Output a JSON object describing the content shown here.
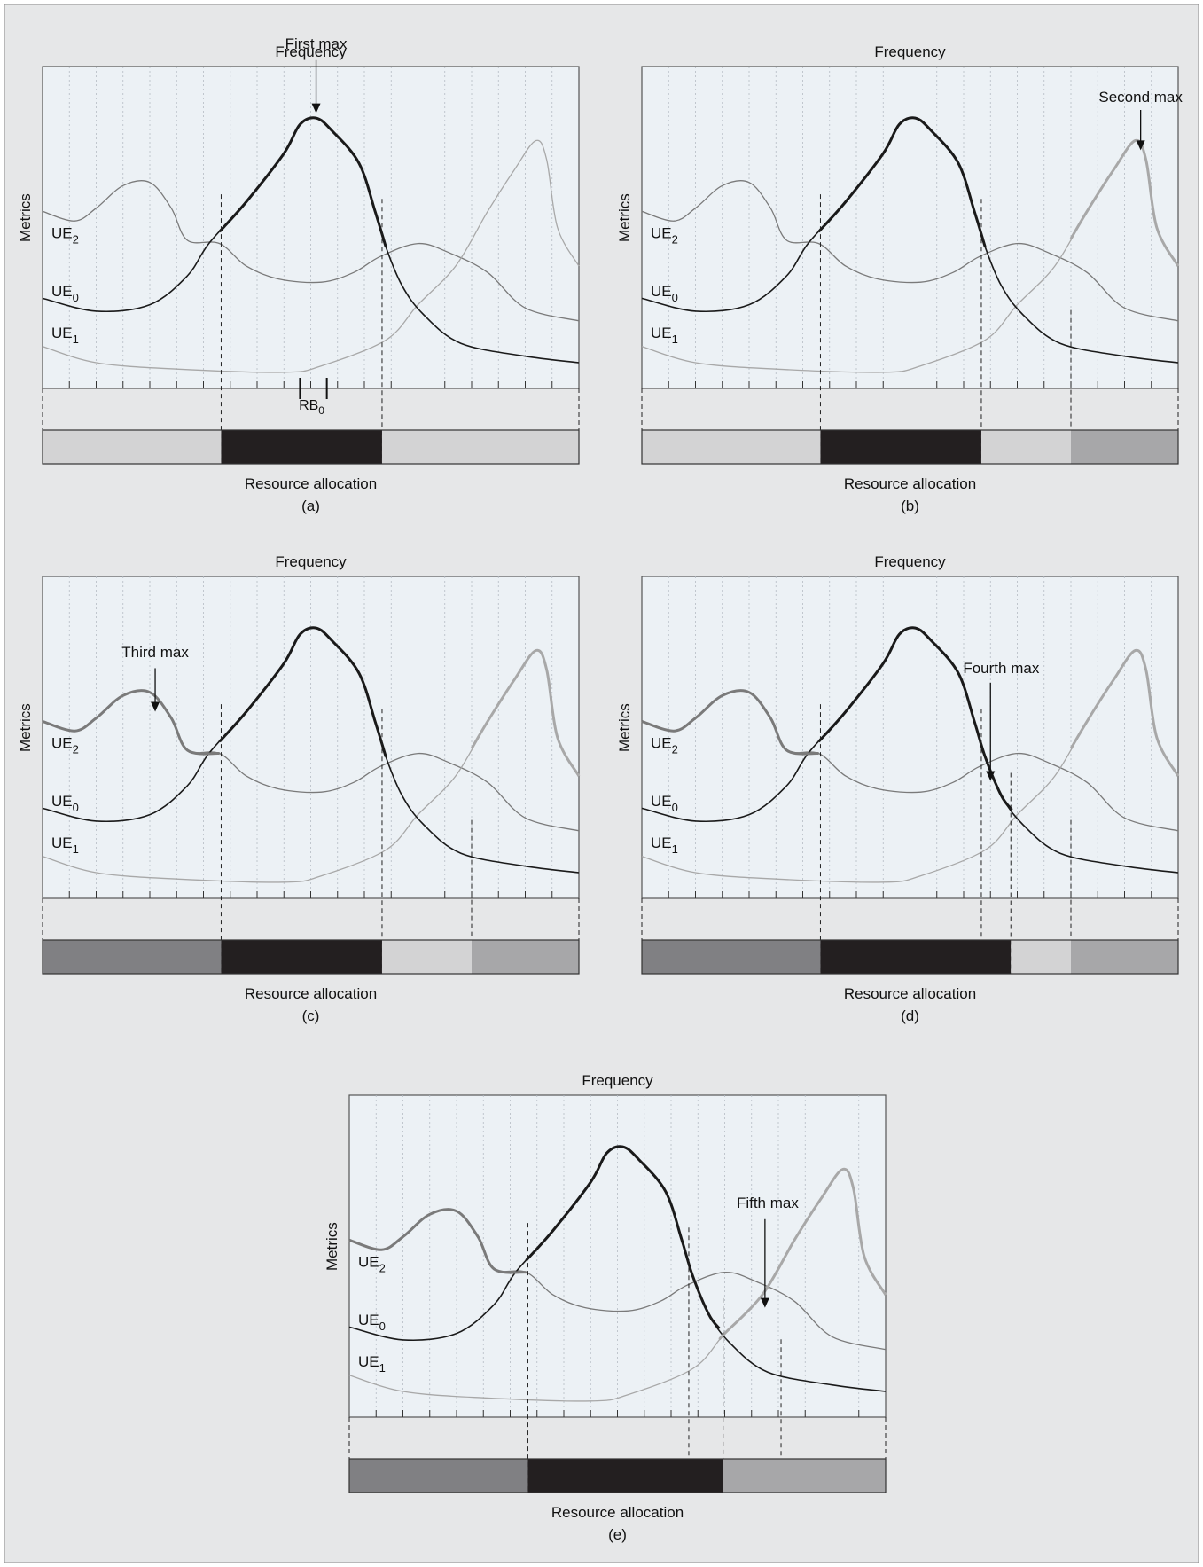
{
  "figure": {
    "colors": {
      "background": "#e6e7e8",
      "plot_background": "#ecf1f5",
      "border": "#555555",
      "ue0": "#1a1a1a",
      "ue1": "#a8a8a8",
      "ue2": "#7a7a7a",
      "seg_light": "#d3d3d4",
      "seg_black": "#231f20",
      "seg_dark": "#808083",
      "seg_mid": "#a7a7a9"
    },
    "panels": [
      {
        "id": "a",
        "top_label": "Frequency",
        "y_label": "Metrics",
        "bottom_label": "Resource allocation",
        "caption": "(a)",
        "ue_labels": [
          {
            "base": "UE",
            "sub": "2"
          },
          {
            "base": "UE",
            "sub": "0"
          },
          {
            "base": "UE",
            "sub": "1"
          }
        ],
        "rb_label": {
          "base": "RB",
          "sub": "0"
        },
        "annotation": {
          "text": "First max"
        },
        "highlights": {
          "ue0": [
            0.33,
            0.64
          ],
          "ue1": [],
          "ue2": []
        },
        "boundaries": [
          0.333,
          0.633
        ],
        "segments": [
          {
            "from": 0,
            "to": 0.333,
            "color": "seg_light"
          },
          {
            "from": 0.333,
            "to": 0.633,
            "color": "seg_black"
          },
          {
            "from": 0.633,
            "to": 1,
            "color": "seg_light"
          }
        ]
      },
      {
        "id": "b",
        "top_label": "Frequency",
        "y_label": "Metrics",
        "bottom_label": "Resource allocation",
        "caption": "(b)",
        "ue_labels": [
          {
            "base": "UE",
            "sub": "2"
          },
          {
            "base": "UE",
            "sub": "0"
          },
          {
            "base": "UE",
            "sub": "1"
          }
        ],
        "annotation": {
          "text": "Second max"
        },
        "highlights": {
          "ue0": [
            0.33,
            0.64
          ],
          "ue1": [
            0.8,
            1.0
          ],
          "ue2": []
        },
        "boundaries": [
          0.333,
          0.633,
          0.8
        ],
        "segments": [
          {
            "from": 0,
            "to": 0.333,
            "color": "seg_light"
          },
          {
            "from": 0.333,
            "to": 0.633,
            "color": "seg_black"
          },
          {
            "from": 0.633,
            "to": 0.8,
            "color": "seg_light"
          },
          {
            "from": 0.8,
            "to": 1,
            "color": "seg_mid"
          }
        ]
      },
      {
        "id": "c",
        "top_label": "Frequency",
        "y_label": "Metrics",
        "bottom_label": "Resource allocation",
        "caption": "(c)",
        "ue_labels": [
          {
            "base": "UE",
            "sub": "2"
          },
          {
            "base": "UE",
            "sub": "0"
          },
          {
            "base": "UE",
            "sub": "1"
          }
        ],
        "annotation": {
          "text": "Third max"
        },
        "highlights": {
          "ue0": [
            0.33,
            0.64
          ],
          "ue1": [
            0.8,
            1.0
          ],
          "ue2": [
            0.0,
            0.33
          ]
        },
        "boundaries": [
          0.333,
          0.633,
          0.8
        ],
        "segments": [
          {
            "from": 0,
            "to": 0.333,
            "color": "seg_dark"
          },
          {
            "from": 0.333,
            "to": 0.633,
            "color": "seg_black"
          },
          {
            "from": 0.633,
            "to": 0.8,
            "color": "seg_light"
          },
          {
            "from": 0.8,
            "to": 1,
            "color": "seg_mid"
          }
        ]
      },
      {
        "id": "d",
        "top_label": "Frequency",
        "y_label": "Metrics",
        "bottom_label": "Resource allocation",
        "caption": "(d)",
        "ue_labels": [
          {
            "base": "UE",
            "sub": "2"
          },
          {
            "base": "UE",
            "sub": "0"
          },
          {
            "base": "UE",
            "sub": "1"
          }
        ],
        "annotation": {
          "text": "Fourth max"
        },
        "highlights": {
          "ue0": [
            0.33,
            0.69
          ],
          "ue1": [
            0.8,
            1.0
          ],
          "ue2": [
            0.0,
            0.33
          ]
        },
        "boundaries": [
          0.333,
          0.633,
          0.688,
          0.8
        ],
        "segments": [
          {
            "from": 0,
            "to": 0.333,
            "color": "seg_dark"
          },
          {
            "from": 0.333,
            "to": 0.688,
            "color": "seg_black"
          },
          {
            "from": 0.688,
            "to": 0.8,
            "color": "seg_light"
          },
          {
            "from": 0.8,
            "to": 1,
            "color": "seg_mid"
          }
        ]
      },
      {
        "id": "e",
        "top_label": "Frequency",
        "y_label": "Metrics",
        "bottom_label": "Resource allocation",
        "caption": "(e)",
        "ue_labels": [
          {
            "base": "UE",
            "sub": "2"
          },
          {
            "base": "UE",
            "sub": "0"
          },
          {
            "base": "UE",
            "sub": "1"
          }
        ],
        "annotation": {
          "text": "Fifth max"
        },
        "highlights": {
          "ue0": [
            0.33,
            0.69
          ],
          "ue1": [
            0.69,
            1.0
          ],
          "ue2": [
            0.0,
            0.33
          ]
        },
        "boundaries": [
          0.333,
          0.633,
          0.697,
          0.805
        ],
        "segments": [
          {
            "from": 0,
            "to": 0.333,
            "color": "seg_dark"
          },
          {
            "from": 0.333,
            "to": 0.697,
            "color": "seg_black"
          },
          {
            "from": 0.697,
            "to": 1,
            "color": "seg_mid"
          }
        ]
      }
    ]
  }
}
